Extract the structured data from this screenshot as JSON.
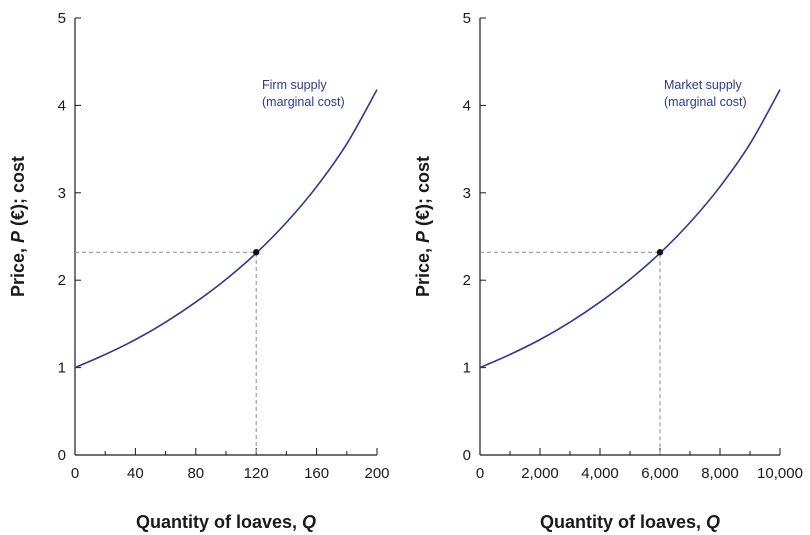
{
  "colors": {
    "curve": "#2b3990",
    "guide": "#8a8a8a",
    "axis": "#1a1a1a"
  },
  "chart_data": [
    {
      "type": "line",
      "xlabel": "Quantity of loaves, ",
      "xlabel_var": "Q",
      "ylabel": "Price, ",
      "ylabel_var": "P",
      "ylabel_suffix": " (€); cost",
      "xlim": [
        0,
        200
      ],
      "ylim": [
        0,
        5
      ],
      "xticks": [
        0,
        40,
        80,
        120,
        160,
        200
      ],
      "xtick_labels": [
        "0",
        "40",
        "80",
        "120",
        "160",
        "200"
      ],
      "minor_xticks": [
        20,
        60,
        100,
        140,
        180
      ],
      "yticks": [
        0,
        1,
        2,
        3,
        4,
        5
      ],
      "ytick_labels": [
        "0",
        "1",
        "2",
        "3",
        "4",
        "5"
      ],
      "series": [
        {
          "label_lines": [
            "Firm supply",
            "(marginal cost)"
          ],
          "x": [
            0,
            20,
            40,
            60,
            80,
            100,
            120,
            140,
            160,
            180,
            200
          ],
          "y": [
            1.0,
            1.15,
            1.32,
            1.52,
            1.75,
            2.01,
            2.31,
            2.66,
            3.07,
            3.56,
            4.18
          ]
        }
      ],
      "highlight_point": {
        "x": 120,
        "y": 2.32
      },
      "grid": false
    },
    {
      "type": "line",
      "xlabel": "Quantity of loaves, ",
      "xlabel_var": "Q",
      "ylabel": "Price, ",
      "ylabel_var": "P",
      "ylabel_suffix": " (€); cost",
      "xlim": [
        0,
        10000
      ],
      "ylim": [
        0,
        5
      ],
      "xticks": [
        0,
        2000,
        4000,
        6000,
        8000,
        10000
      ],
      "xtick_labels": [
        "0",
        "2,000",
        "4,000",
        "6,000",
        "8,000",
        "10,000"
      ],
      "minor_xticks": [
        1000,
        3000,
        5000,
        7000,
        9000
      ],
      "yticks": [
        0,
        1,
        2,
        3,
        4,
        5
      ],
      "ytick_labels": [
        "0",
        "1",
        "2",
        "3",
        "4",
        "5"
      ],
      "series": [
        {
          "label_lines": [
            "Market supply",
            "(marginal cost)"
          ],
          "x": [
            0,
            1000,
            2000,
            3000,
            4000,
            5000,
            6000,
            7000,
            8000,
            9000,
            10000
          ],
          "y": [
            1.0,
            1.15,
            1.32,
            1.52,
            1.75,
            2.01,
            2.31,
            2.66,
            3.07,
            3.56,
            4.18
          ]
        }
      ],
      "highlight_point": {
        "x": 6000,
        "y": 2.32
      },
      "grid": false
    }
  ]
}
